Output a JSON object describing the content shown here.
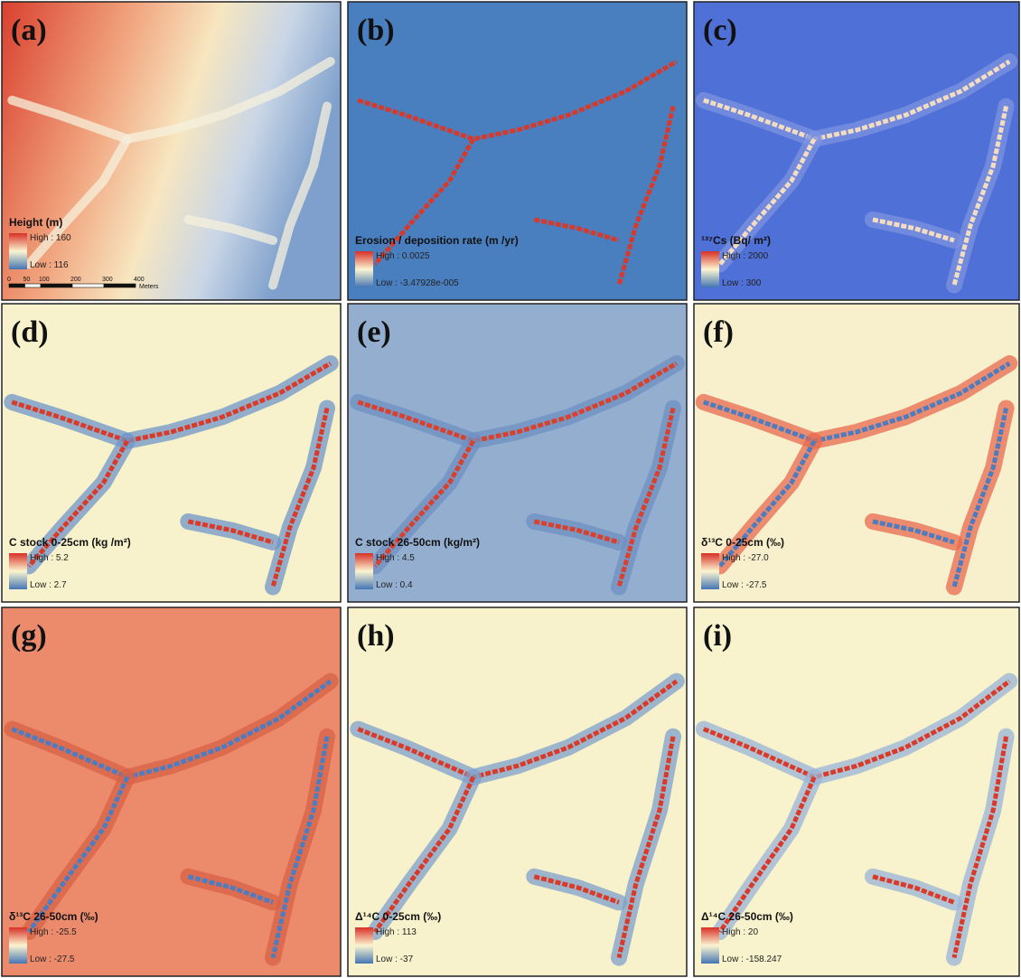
{
  "panels": [
    {
      "label": "(a)",
      "legend_title": "Height (m)",
      "high": "High : 160",
      "low": "Low : 116"
    },
    {
      "label": "(b)",
      "legend_title": "Erosion / deposition rate (m /yr)",
      "high": "High : 0.0025",
      "low": "Low : -3.47928e-005"
    },
    {
      "label": "(c)",
      "legend_title": "¹³⁷Cs (Bq/ m²)",
      "high": "High : 2000",
      "low": "Low : 300"
    },
    {
      "label": "(d)",
      "legend_title": "C stock 0-25cm (kg /m²)",
      "high": "High : 5.2",
      "low": "Low : 2.7"
    },
    {
      "label": "(e)",
      "legend_title": "C stock 26-50cm (kg/m²)",
      "high": "High : 4.5",
      "low": "Low : 0.4"
    },
    {
      "label": "(f)",
      "legend_title": "δ¹³C 0-25cm (‰)",
      "high": "High : -27.0",
      "low": "Low : -27.5"
    },
    {
      "label": "(g)",
      "legend_title": "δ¹³C 26-50cm (‰)",
      "high": "High : -25.5",
      "low": "Low : -27.5"
    },
    {
      "label": "(h)",
      "legend_title": "Δ¹⁴C 0-25cm (‰)",
      "high": "High : 113",
      "low": "Low : -37"
    },
    {
      "label": "(i)",
      "legend_title": "Δ¹⁴C 26-50cm (‰)",
      "high": "High : 20",
      "low": "Low : -158.247"
    }
  ],
  "scale_bar": {
    "ticks": [
      "0",
      "50",
      "100",
      "200",
      "300",
      "400"
    ],
    "unit": "Meters"
  }
}
